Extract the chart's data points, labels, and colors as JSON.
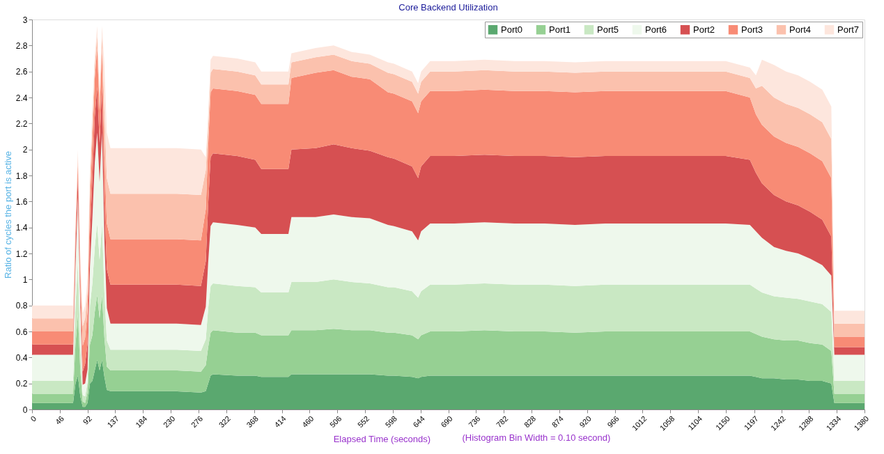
{
  "chart_data": {
    "type": "area",
    "stacked": true,
    "title": "Core Backend Utilization",
    "xlabel": "Elapsed Time (seconds)",
    "ylabel": "Ratio of cycles the port is active",
    "annotations": [
      "(Histogram Bin Width = 0.10 second)"
    ],
    "x": [
      0,
      20,
      40,
      60,
      68,
      72,
      76,
      80,
      84,
      88,
      92,
      96,
      100,
      104,
      108,
      112,
      116,
      120,
      124,
      130,
      160,
      200,
      240,
      280,
      288,
      292,
      296,
      300,
      340,
      370,
      380,
      410,
      425,
      430,
      470,
      500,
      530,
      560,
      590,
      600,
      630,
      640,
      645,
      660,
      700,
      750,
      800,
      850,
      900,
      950,
      1000,
      1050,
      1100,
      1150,
      1190,
      1200,
      1210,
      1230,
      1250,
      1270,
      1290,
      1310,
      1325,
      1330,
      1340,
      1360,
      1380
    ],
    "xlim": [
      0,
      1380
    ],
    "xticks": [
      0,
      46,
      92,
      137,
      184,
      230,
      276,
      322,
      368,
      414,
      460,
      506,
      552,
      598,
      644,
      690,
      736,
      782,
      828,
      874,
      920,
      966,
      1012,
      1058,
      1104,
      1150,
      1197,
      1242,
      1288,
      1334,
      1380
    ],
    "ylim": [
      0,
      3
    ],
    "yticks": [
      0,
      0.2,
      0.4,
      0.6,
      0.8,
      1,
      1.2,
      1.4,
      1.6,
      1.8,
      2,
      2.2,
      2.4,
      2.6,
      2.8,
      3
    ],
    "grid": false,
    "legend": "top right",
    "series": [
      {
        "name": "Port0",
        "color": "#5aa86f",
        "values": [
          0.05,
          0.05,
          0.05,
          0.05,
          0.05,
          0.2,
          0.26,
          0.1,
          0.02,
          0.02,
          0.05,
          0.2,
          0.22,
          0.3,
          0.38,
          0.3,
          0.38,
          0.25,
          0.15,
          0.14,
          0.14,
          0.14,
          0.14,
          0.13,
          0.14,
          0.2,
          0.26,
          0.27,
          0.26,
          0.26,
          0.25,
          0.25,
          0.25,
          0.27,
          0.27,
          0.27,
          0.27,
          0.27,
          0.26,
          0.26,
          0.25,
          0.24,
          0.25,
          0.26,
          0.26,
          0.26,
          0.26,
          0.26,
          0.26,
          0.26,
          0.26,
          0.26,
          0.26,
          0.26,
          0.26,
          0.25,
          0.24,
          0.24,
          0.23,
          0.23,
          0.22,
          0.22,
          0.2,
          0.05,
          0.05,
          0.05,
          0.05
        ]
      },
      {
        "name": "Port1",
        "color": "#96d093",
        "values": [
          0.07,
          0.07,
          0.07,
          0.07,
          0.07,
          0.3,
          0.47,
          0.2,
          0.04,
          0.03,
          0.08,
          0.3,
          0.35,
          0.45,
          0.5,
          0.4,
          0.5,
          0.3,
          0.18,
          0.16,
          0.16,
          0.16,
          0.16,
          0.16,
          0.2,
          0.28,
          0.33,
          0.34,
          0.33,
          0.33,
          0.32,
          0.32,
          0.32,
          0.34,
          0.34,
          0.35,
          0.34,
          0.34,
          0.33,
          0.33,
          0.32,
          0.3,
          0.32,
          0.34,
          0.34,
          0.35,
          0.34,
          0.34,
          0.33,
          0.34,
          0.34,
          0.34,
          0.34,
          0.34,
          0.34,
          0.33,
          0.32,
          0.3,
          0.3,
          0.3,
          0.29,
          0.28,
          0.25,
          0.07,
          0.07,
          0.07,
          0.07
        ]
      },
      {
        "name": "Port5",
        "color": "#c9e8c3",
        "values": [
          0.1,
          0.1,
          0.1,
          0.1,
          0.1,
          0.3,
          0.4,
          0.2,
          0.05,
          0.05,
          0.08,
          0.3,
          0.4,
          0.5,
          0.55,
          0.45,
          0.55,
          0.35,
          0.2,
          0.16,
          0.16,
          0.16,
          0.16,
          0.16,
          0.2,
          0.3,
          0.36,
          0.36,
          0.36,
          0.35,
          0.33,
          0.33,
          0.33,
          0.37,
          0.37,
          0.38,
          0.37,
          0.36,
          0.35,
          0.35,
          0.34,
          0.32,
          0.34,
          0.36,
          0.36,
          0.36,
          0.36,
          0.36,
          0.36,
          0.36,
          0.36,
          0.36,
          0.36,
          0.36,
          0.36,
          0.35,
          0.34,
          0.33,
          0.33,
          0.32,
          0.32,
          0.31,
          0.3,
          0.1,
          0.1,
          0.1,
          0.1
        ]
      },
      {
        "name": "Port6",
        "color": "#eef8ec",
        "values": [
          0.2,
          0.2,
          0.2,
          0.2,
          0.2,
          0.3,
          0.5,
          0.3,
          0.08,
          0.1,
          0.1,
          0.3,
          0.5,
          0.65,
          0.7,
          0.6,
          0.7,
          0.4,
          0.25,
          0.2,
          0.2,
          0.2,
          0.2,
          0.2,
          0.25,
          0.35,
          0.46,
          0.47,
          0.47,
          0.46,
          0.45,
          0.45,
          0.45,
          0.5,
          0.5,
          0.5,
          0.5,
          0.5,
          0.48,
          0.47,
          0.46,
          0.44,
          0.46,
          0.47,
          0.47,
          0.47,
          0.47,
          0.47,
          0.47,
          0.47,
          0.47,
          0.47,
          0.47,
          0.47,
          0.46,
          0.44,
          0.42,
          0.38,
          0.36,
          0.35,
          0.33,
          0.3,
          0.28,
          0.2,
          0.2,
          0.2,
          0.2
        ]
      },
      {
        "name": "Port2",
        "color": "#d65052",
        "values": [
          0.08,
          0.08,
          0.08,
          0.08,
          0.08,
          0.15,
          0.17,
          0.12,
          0.1,
          0.15,
          0.2,
          0.25,
          0.3,
          0.35,
          0.35,
          0.3,
          0.35,
          0.3,
          0.3,
          0.3,
          0.3,
          0.3,
          0.3,
          0.3,
          0.35,
          0.45,
          0.53,
          0.53,
          0.53,
          0.52,
          0.5,
          0.5,
          0.5,
          0.52,
          0.53,
          0.54,
          0.53,
          0.52,
          0.52,
          0.52,
          0.5,
          0.48,
          0.5,
          0.52,
          0.52,
          0.52,
          0.52,
          0.52,
          0.52,
          0.52,
          0.52,
          0.52,
          0.52,
          0.52,
          0.5,
          0.45,
          0.42,
          0.4,
          0.38,
          0.37,
          0.36,
          0.35,
          0.3,
          0.06,
          0.06,
          0.06,
          0.06
        ]
      },
      {
        "name": "Port3",
        "color": "#f88b75",
        "values": [
          0.1,
          0.1,
          0.1,
          0.1,
          0.1,
          0.1,
          0.1,
          0.15,
          0.2,
          0.2,
          0.25,
          0.25,
          0.3,
          0.3,
          0.3,
          0.25,
          0.3,
          0.35,
          0.35,
          0.35,
          0.35,
          0.35,
          0.35,
          0.35,
          0.4,
          0.45,
          0.5,
          0.5,
          0.5,
          0.5,
          0.5,
          0.5,
          0.5,
          0.55,
          0.58,
          0.57,
          0.55,
          0.55,
          0.5,
          0.5,
          0.5,
          0.5,
          0.5,
          0.5,
          0.5,
          0.5,
          0.5,
          0.5,
          0.5,
          0.5,
          0.5,
          0.5,
          0.5,
          0.5,
          0.48,
          0.45,
          0.45,
          0.45,
          0.45,
          0.45,
          0.45,
          0.45,
          0.45,
          0.08,
          0.08,
          0.08,
          0.08
        ]
      },
      {
        "name": "Port4",
        "color": "#fbc1ad",
        "values": [
          0.1,
          0.1,
          0.1,
          0.1,
          0.1,
          0.05,
          0.05,
          0.05,
          0.15,
          0.15,
          0.15,
          0.15,
          0.15,
          0.1,
          0.1,
          0.1,
          0.1,
          0.35,
          0.35,
          0.35,
          0.35,
          0.35,
          0.35,
          0.35,
          0.3,
          0.15,
          0.15,
          0.15,
          0.15,
          0.15,
          0.15,
          0.15,
          0.15,
          0.12,
          0.12,
          0.12,
          0.12,
          0.12,
          0.15,
          0.15,
          0.15,
          0.15,
          0.15,
          0.15,
          0.15,
          0.15,
          0.15,
          0.15,
          0.15,
          0.15,
          0.15,
          0.15,
          0.15,
          0.15,
          0.15,
          0.2,
          0.3,
          0.3,
          0.3,
          0.3,
          0.3,
          0.3,
          0.3,
          0.1,
          0.1,
          0.1,
          0.1
        ]
      },
      {
        "name": "Port7",
        "color": "#fde6dd",
        "values": [
          0.1,
          0.1,
          0.1,
          0.1,
          0.1,
          0.05,
          0.05,
          0.05,
          0.1,
          0.1,
          0.1,
          0.1,
          0.1,
          0.07,
          0.07,
          0.07,
          0.07,
          0.35,
          0.35,
          0.35,
          0.35,
          0.35,
          0.35,
          0.35,
          0.1,
          0.1,
          0.1,
          0.1,
          0.1,
          0.1,
          0.1,
          0.1,
          0.1,
          0.07,
          0.07,
          0.07,
          0.07,
          0.07,
          0.08,
          0.08,
          0.08,
          0.08,
          0.08,
          0.08,
          0.08,
          0.08,
          0.08,
          0.08,
          0.08,
          0.08,
          0.08,
          0.08,
          0.08,
          0.08,
          0.08,
          0.1,
          0.2,
          0.25,
          0.25,
          0.25,
          0.25,
          0.25,
          0.25,
          0.1,
          0.1,
          0.1,
          0.1
        ]
      }
    ]
  }
}
